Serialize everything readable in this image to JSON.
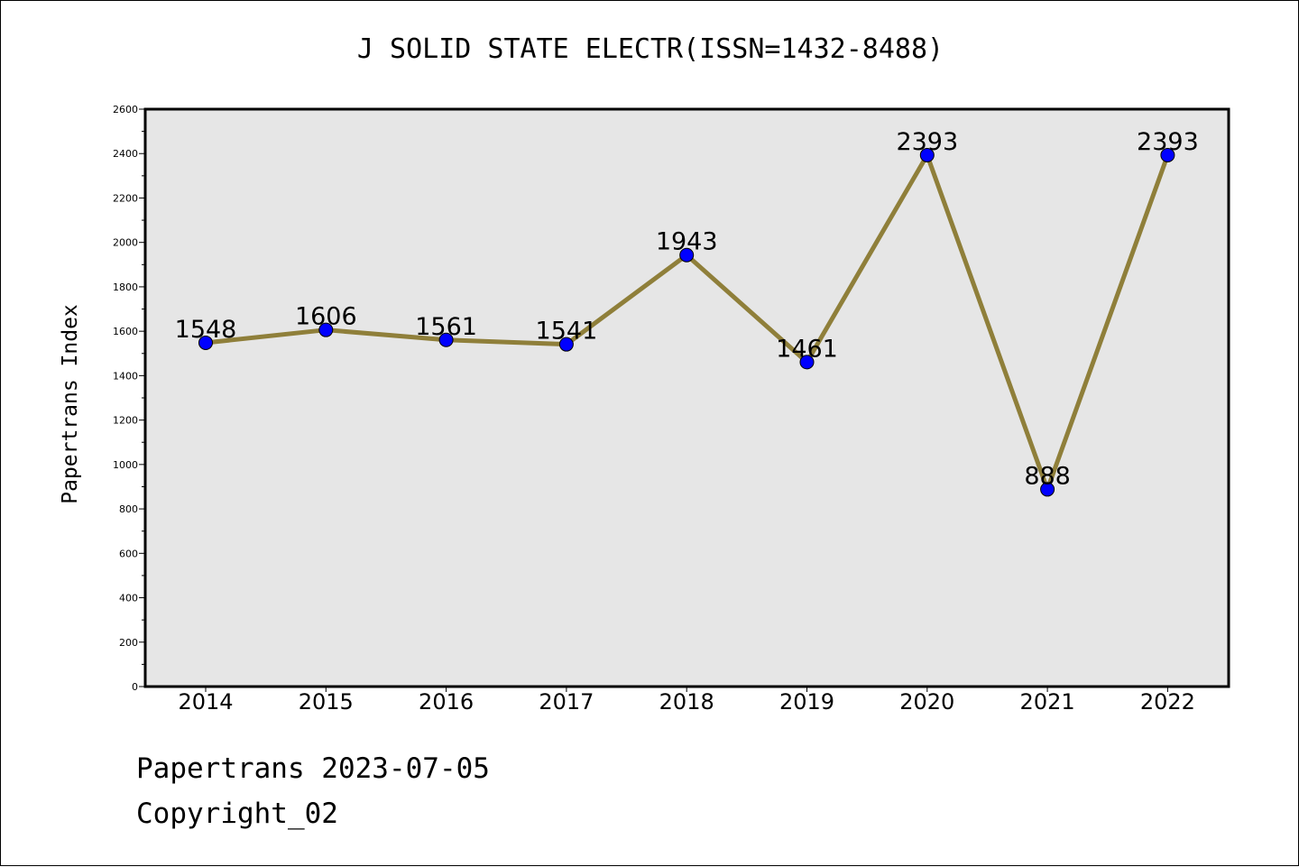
{
  "chart_data": {
    "type": "line",
    "title": "J SOLID STATE ELECTR(ISSN=1432-8488)",
    "xlabel": "",
    "ylabel": "Papertrans Index",
    "categories": [
      "2014",
      "2015",
      "2016",
      "2017",
      "2018",
      "2019",
      "2020",
      "2021",
      "2022"
    ],
    "values": [
      1548,
      1606,
      1561,
      1541,
      1943,
      1461,
      2393,
      888,
      2393
    ],
    "data_labels": [
      "1548",
      "1606",
      "1561",
      "1541",
      "1943",
      "1461",
      "2393",
      "888",
      "2393"
    ],
    "ylim": [
      0,
      2600
    ],
    "yticks": [
      0,
      200,
      400,
      600,
      800,
      1000,
      1200,
      1400,
      1600,
      1800,
      2000,
      2200,
      2400,
      2600
    ],
    "grid": false,
    "legend": "none",
    "colors": {
      "line": "#8f7f3a",
      "marker": "#0000ff",
      "plot_background": "#e6e6e6"
    }
  },
  "footer": {
    "date_line": "Papertrans 2023-07-05",
    "copyright_line": "Copyright_02"
  }
}
